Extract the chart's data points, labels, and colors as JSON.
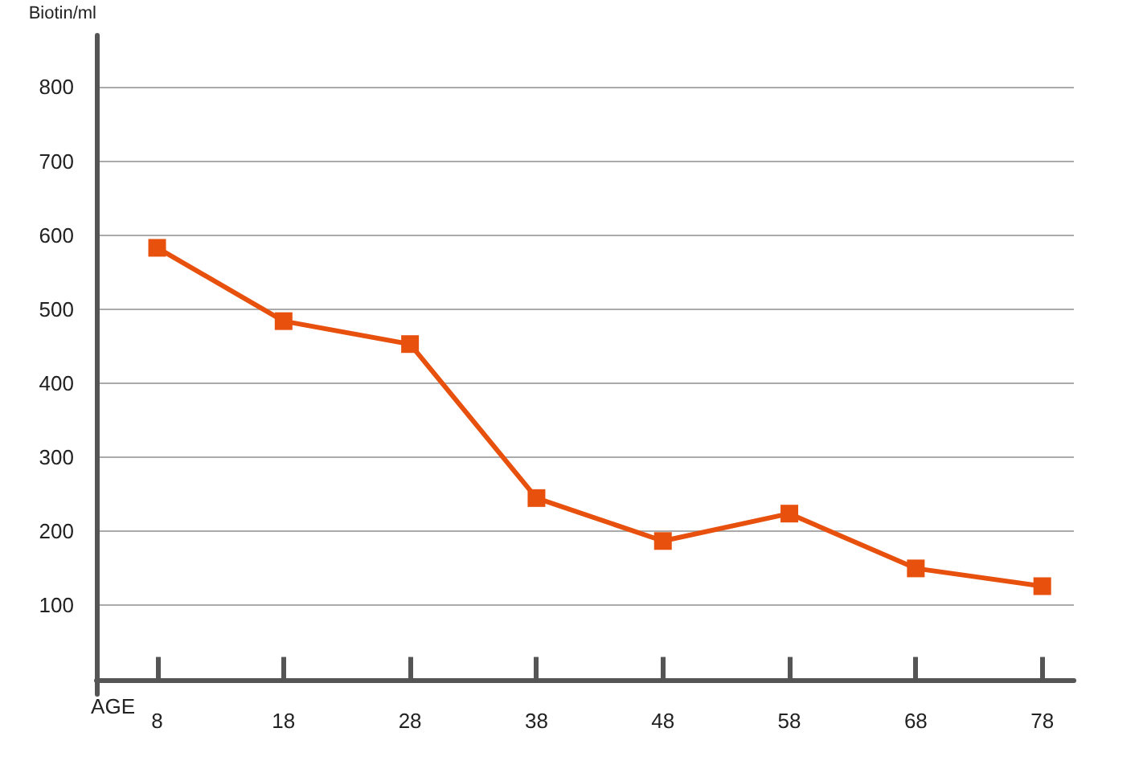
{
  "chart_data": {
    "type": "line",
    "xlabel": "AGE",
    "ylabel": "Biotin/ml",
    "x": [
      8,
      18,
      28,
      38,
      48,
      58,
      68,
      78
    ],
    "series": [
      {
        "color": "#e8500e",
        "values": [
          583,
          484,
          453,
          245,
          187,
          224,
          150,
          126
        ]
      }
    ],
    "xlim": [
      3.2,
      80.5
    ],
    "xticks": [
      8,
      18,
      28,
      38,
      48,
      58,
      68,
      78
    ],
    "ylim": [
      -20,
      870
    ],
    "yticks": [
      100,
      200,
      300,
      400,
      500,
      600,
      700,
      800
    ],
    "grid": "y",
    "marker": "square",
    "line_style": "solid"
  }
}
